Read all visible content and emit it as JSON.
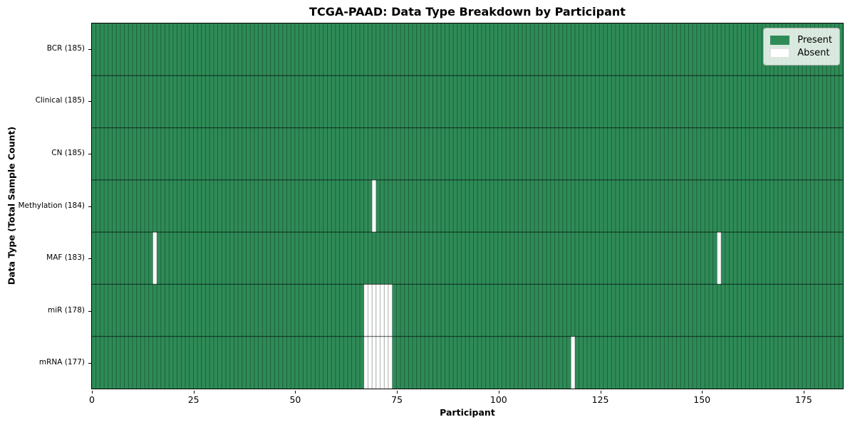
{
  "title": "TCGA-PAAD: Data Type Breakdown by Participant",
  "colors": {
    "present": "#2e8b57",
    "absent": "#ffffff",
    "bar_edge": "rgba(0,0,0,0.38)",
    "row_divider": "rgba(0,0,0,0.7)",
    "frame": "#000000",
    "legend_border": "#b0b8b0"
  },
  "chart_data": {
    "type": "heatmap",
    "title": "TCGA-PAAD: Data Type Breakdown by Participant",
    "xlabel": "Participant",
    "ylabel": "Data Type (Total Sample Count)",
    "n_participants": 185,
    "x_range": [
      0,
      185
    ],
    "x_ticks": [
      0,
      25,
      50,
      75,
      100,
      125,
      150,
      175
    ],
    "grid": false,
    "legend_position": "upper right",
    "rows": [
      {
        "label": "BCR (185)",
        "present_count": 185,
        "absent_participants": []
      },
      {
        "label": "Clinical (185)",
        "present_count": 185,
        "absent_participants": []
      },
      {
        "label": "CN (185)",
        "present_count": 185,
        "absent_participants": []
      },
      {
        "label": "Methylation (184)",
        "present_count": 184,
        "absent_participants": [
          69
        ]
      },
      {
        "label": "MAF (183)",
        "present_count": 183,
        "absent_participants": [
          15,
          154
        ]
      },
      {
        "label": "miR (178)",
        "present_count": 178,
        "absent_participants": [
          67,
          68,
          69,
          70,
          71,
          72,
          73
        ]
      },
      {
        "label": "mRNA (177)",
        "present_count": 177,
        "absent_participants": [
          67,
          68,
          69,
          70,
          71,
          72,
          73,
          118
        ]
      }
    ],
    "legend": [
      {
        "label": "Present",
        "state": "present"
      },
      {
        "label": "Absent",
        "state": "absent"
      }
    ]
  }
}
